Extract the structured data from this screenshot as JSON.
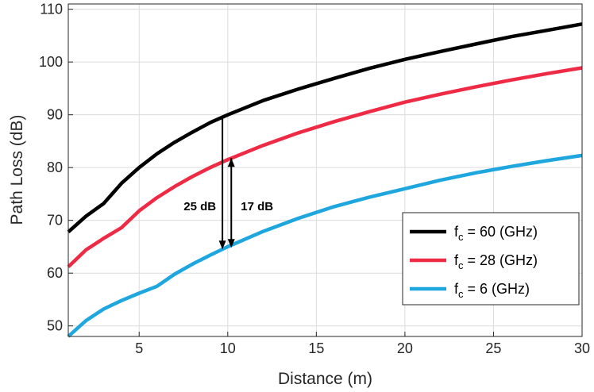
{
  "chart_data": {
    "type": "line",
    "xlabel": "Distance (m)",
    "ylabel": "Path Loss (dB)",
    "xlim": [
      1,
      30
    ],
    "ylim": [
      48,
      111
    ],
    "xticks": [
      5,
      10,
      15,
      20,
      25,
      30
    ],
    "yticks": [
      50,
      60,
      70,
      80,
      90,
      100,
      110
    ],
    "grid": true,
    "legend_position": "bottom-right",
    "series": [
      {
        "name_main": "f",
        "name_sub": "c",
        "name_rest": " = 60 (GHz)",
        "color": "#000000",
        "x": [
          1,
          2,
          3,
          4,
          5,
          6,
          7,
          8,
          9,
          10,
          12,
          14,
          16,
          18,
          20,
          22,
          24,
          26,
          28,
          30
        ],
        "y": [
          67.8,
          70.8,
          73.2,
          77.0,
          80.0,
          82.6,
          84.8,
          86.7,
          88.5,
          90.0,
          92.7,
          94.9,
          96.9,
          98.8,
          100.5,
          102.0,
          103.4,
          104.8,
          106.0,
          107.2
        ]
      },
      {
        "name_main": "f",
        "name_sub": "c",
        "name_rest": " = 28 (GHz)",
        "color": "#ee2a45",
        "x": [
          1,
          2,
          3,
          4,
          5,
          6,
          7,
          8,
          9,
          10,
          12,
          14,
          16,
          18,
          20,
          22,
          24,
          26,
          28,
          30
        ],
        "y": [
          61.2,
          64.4,
          66.6,
          68.6,
          71.8,
          74.3,
          76.4,
          78.3,
          80.0,
          81.5,
          84.2,
          86.6,
          88.7,
          90.6,
          92.4,
          93.9,
          95.3,
          96.6,
          97.8,
          98.9
        ]
      },
      {
        "name_main": "f",
        "name_sub": "c",
        "name_rest": " = 6   (GHz)",
        "color": "#1ea6de",
        "x": [
          1,
          2,
          3,
          4,
          5,
          6,
          7,
          8,
          9,
          10,
          12,
          14,
          16,
          18,
          20,
          22,
          24,
          26,
          28,
          30
        ],
        "y": [
          48.0,
          51.0,
          53.2,
          54.8,
          56.2,
          57.5,
          59.8,
          61.7,
          63.4,
          65.0,
          67.9,
          70.4,
          72.6,
          74.4,
          76.0,
          77.6,
          79.0,
          80.2,
          81.3,
          82.3
        ]
      }
    ],
    "annotations": [
      {
        "text": "25 dB",
        "arrow_x": 9.7,
        "from_y": 89.5,
        "to_y": 64.5
      },
      {
        "text": "17 dB",
        "arrow_x": 10.2,
        "from_y": 81.8,
        "to_y": 64.8
      }
    ]
  }
}
